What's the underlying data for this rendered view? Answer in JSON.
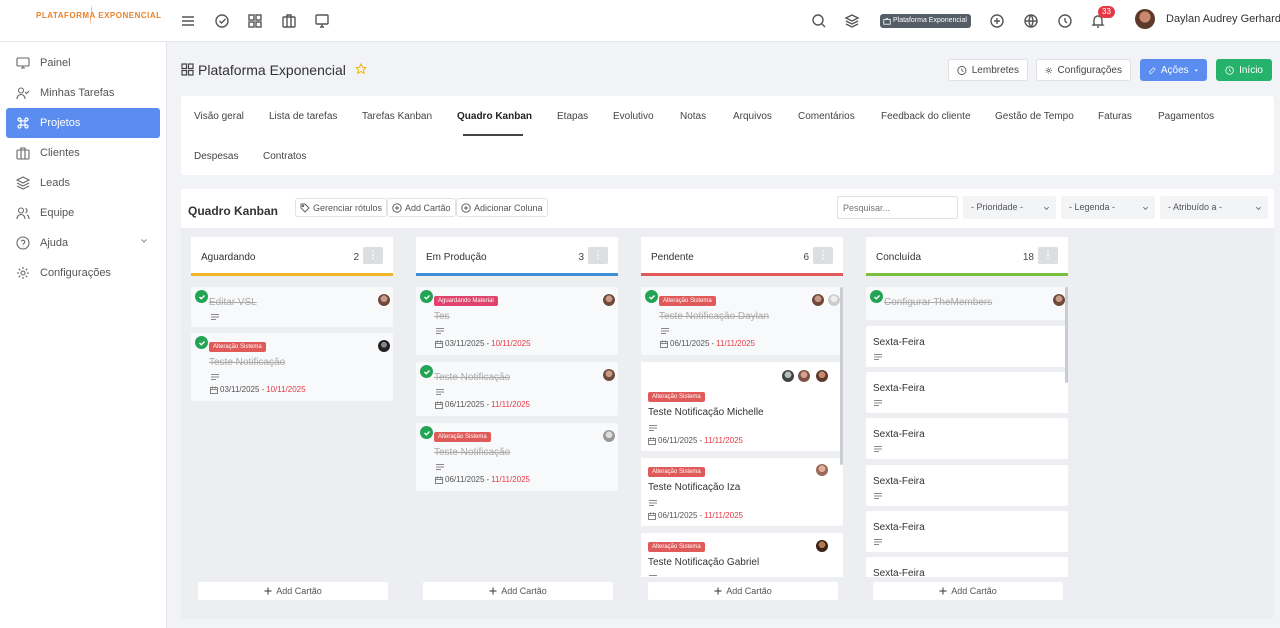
{
  "brand": {
    "logo_text": "PLATAFORMA EXPONENCIAL"
  },
  "topbar": {
    "workspace_badge": "Plataforma Exponencial",
    "notification_count": "33",
    "user_name": "Daylan Audrey Gerhardt"
  },
  "sidebar": {
    "items": [
      {
        "label": "Painel",
        "icon": "monitor-icon"
      },
      {
        "label": "Minhas Tarefas",
        "icon": "user-check-icon"
      },
      {
        "label": "Projetos",
        "icon": "command-icon",
        "active": true
      },
      {
        "label": "Clientes",
        "icon": "briefcase-icon"
      },
      {
        "label": "Leads",
        "icon": "layers-icon"
      },
      {
        "label": "Equipe",
        "icon": "users-icon"
      },
      {
        "label": "Ajuda",
        "icon": "help-circle-icon"
      },
      {
        "label": "Configurações",
        "icon": "settings-icon"
      }
    ]
  },
  "project": {
    "title": "Plataforma Exponencial",
    "buttons": {
      "reminders": "Lembretes",
      "settings": "Configurações",
      "actions": "Ações",
      "start": "Início"
    }
  },
  "tabs": [
    "Visão geral",
    "Lista de tarefas",
    "Tarefas Kanban",
    "Quadro Kanban",
    "Etapas",
    "Evolutivo",
    "Notas",
    "Arquivos",
    "Comentários",
    "Feedback do cliente",
    "Gestão de Tempo",
    "Faturas",
    "Pagamentos",
    "Despesas",
    "Contratos"
  ],
  "board": {
    "title": "Quadro Kanban",
    "manage_labels": "Gerenciar rótulos",
    "add_card": "Add Cartão",
    "add_column": "Adicionar Coluna",
    "search_placeholder": "Pesquisar...",
    "filters": {
      "priority": "- Prioridade -",
      "legend": "- Legenda -",
      "assigned": "- Atribuído a -"
    },
    "add_card_footer": "Add Cartão"
  },
  "colors": {
    "primary": "#5a8def",
    "success": "#25b26b",
    "danger": "#e53945",
    "waiting": "#f0b429",
    "production": "#3b8fd9",
    "pending": "#e05a5a",
    "done": "#7ac143"
  },
  "columns": [
    {
      "name": "Aguardando",
      "count": "2",
      "cards": [
        {
          "title": "Editar VSL"
        },
        {
          "tag": "Alteração Sistema",
          "title": "Teste Notificação",
          "start": "03/11/2025",
          "due": "10/11/2025"
        }
      ]
    },
    {
      "name": "Em Produção",
      "count": "3",
      "cards": [
        {
          "tag": "Aguardando Material",
          "title": "Tes",
          "start": "03/11/2025",
          "due": "10/11/2025"
        },
        {
          "title": "Teste Notificação",
          "start": "06/11/2025",
          "due": "11/11/2025"
        },
        {
          "tag": "Alteração Sistema",
          "title": "Teste Notificação",
          "start": "06/11/2025",
          "due": "11/11/2025"
        }
      ]
    },
    {
      "name": "Pendente",
      "count": "6",
      "cards": [
        {
          "tag": "Alteração Sistema",
          "title": "Teste Notificação Daylan",
          "start": "06/11/2025",
          "due": "11/11/2025"
        },
        {
          "tag": "Alteração Sistema",
          "title": "Teste Notificação Michelle",
          "start": "06/11/2025",
          "due": "11/11/2025"
        },
        {
          "tag": "Alteração Sistema",
          "title": "Teste Notificação Iza",
          "start": "06/11/2025",
          "due": "11/11/2025"
        },
        {
          "tag": "Alteração Sistema",
          "title": "Teste Notificação Gabriel"
        }
      ]
    },
    {
      "name": "Concluída",
      "count": "18",
      "cards": [
        {
          "title": "Configurar TheMembers"
        },
        {
          "title": "Sexta-Feira"
        },
        {
          "title": "Sexta-Feira"
        },
        {
          "title": "Sexta-Feira"
        },
        {
          "title": "Sexta-Feira"
        },
        {
          "title": "Sexta-Feira"
        },
        {
          "title": "Sexta-Feira"
        }
      ]
    }
  ]
}
